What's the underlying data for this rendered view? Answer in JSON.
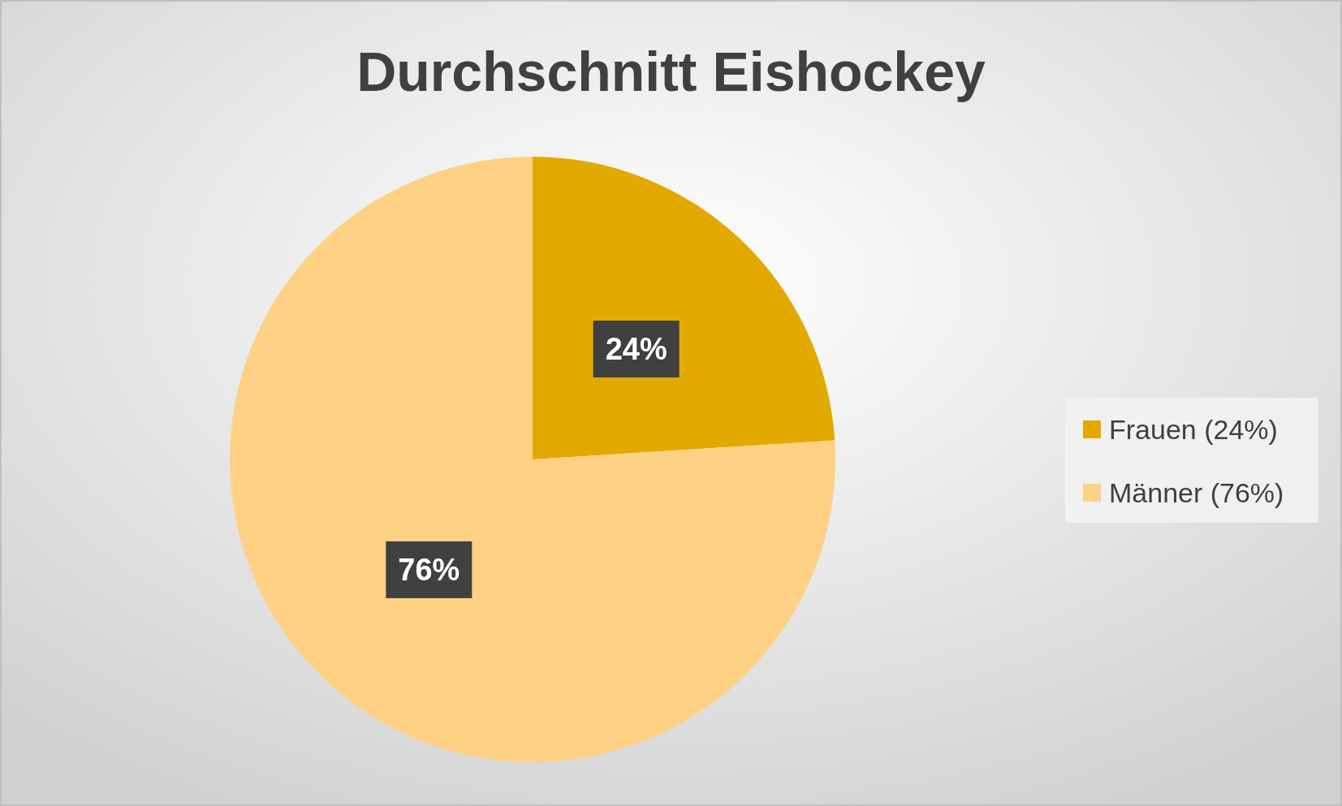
{
  "chart_data": {
    "type": "pie",
    "title": "Durchschnitt Eishockey",
    "categories": [
      "Frauen (24%)",
      "Männer (76%)"
    ],
    "values": [
      24,
      76
    ],
    "colors": [
      "#e2aa00",
      "#fed184"
    ],
    "value_labels": [
      "24%",
      "76%"
    ],
    "legend": "right"
  }
}
